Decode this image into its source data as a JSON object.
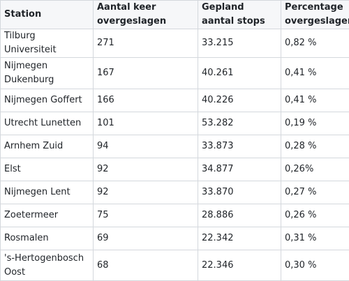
{
  "table": {
    "headers": [
      "Station",
      "Aantal keer overgeslagen",
      "Gepland aantal stops",
      "Percentage overgeslagen"
    ],
    "rows": [
      [
        "Tilburg Universiteit",
        "271",
        "33.215",
        "0,82 %"
      ],
      [
        "Nijmegen Dukenburg",
        "167",
        "40.261",
        "0,41 %"
      ],
      [
        "Nijmegen Goffert",
        "166",
        "40.226",
        "0,41 %"
      ],
      [
        "Utrecht Lunetten",
        "101",
        "53.282",
        "0,19 %"
      ],
      [
        "Arnhem Zuid",
        "94",
        "33.873",
        "0,28 %"
      ],
      [
        "Elst",
        "92",
        "34.877",
        "0,26%"
      ],
      [
        "Nijmegen Lent",
        "92",
        "33.870",
        "0,27 %"
      ],
      [
        "Zoetermeer",
        "75",
        "28.886",
        "0,26 %"
      ],
      [
        "Rosmalen",
        "69",
        "22.342",
        "0,31 %"
      ],
      [
        "'s-Hertogenbosch Oost",
        "68",
        "22.346",
        "0,30 %"
      ]
    ]
  }
}
